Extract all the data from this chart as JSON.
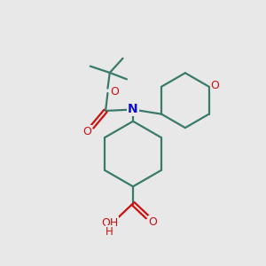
{
  "bg_color": "#e8e8e8",
  "bond_color": "#3a7a6a",
  "N_color": "#1010cc",
  "O_color": "#cc1010",
  "line_width": 1.6,
  "fig_size": [
    3.0,
    3.0
  ],
  "dpi": 100,
  "xlim": [
    0,
    10
  ],
  "ylim": [
    0,
    10
  ]
}
